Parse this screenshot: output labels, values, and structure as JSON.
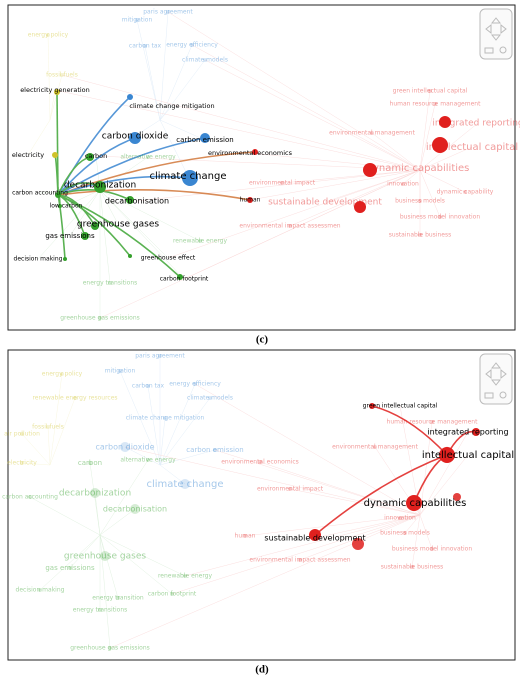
{
  "panels": [
    {
      "caption": "(c)",
      "nodes": [
        "paris agreement",
        "mitigation",
        "energy policy",
        "carbon tax",
        "energy efficiency",
        "climate models",
        "electricity generation",
        "fossil fuels",
        "climate change mitigation",
        "green intellectual capital",
        "human resource management",
        "integrated reporting",
        "carbon dioxide",
        "carbon emission",
        "environmental management",
        "intellectual capital",
        "electricity",
        "carbon",
        "alternative energy",
        "environmental economics",
        "dynamic capabilities",
        "climate change",
        "decarbonization",
        "environmental impact",
        "innovation",
        "sustainable development",
        "carbon accounting",
        "decarbonisation",
        "low carbon",
        "human",
        "dynamic capability",
        "business models",
        "greenhouse gases",
        "gas emissions",
        "environmental impact assessmen",
        "business model innovation",
        "sustainable business",
        "renewable energy",
        "decision making",
        "greenhouse effect",
        "energy transitions",
        "carbon footprint",
        "greenhouse gas emissions"
      ]
    },
    {
      "caption": "(d)",
      "nodes": [
        "paris agreement",
        "mitigation",
        "energy policy",
        "energy efficiency",
        "carbon tax",
        "renewable energy resources",
        "climate models",
        "green intellectual capital",
        "climate change mitigation",
        "human resource management",
        "fossil fuels",
        "air pollution",
        "integrated reporting",
        "carbon dioxide",
        "carbon emission",
        "environmental management",
        "intellectual capital",
        "electricity",
        "carbon",
        "alternative energy",
        "environmental economics",
        "climate change",
        "environmental impact",
        "decarbonization",
        "carbon accounting",
        "dynamic capabilities",
        "decarbonisation",
        "innovation",
        "business models",
        "human",
        "sustainable development",
        "greenhouse gases",
        "business model innovation",
        "environmental impact assessmen",
        "gas emissions",
        "sustainable business",
        "renewable energy",
        "decision making",
        "energy transition",
        "carbon footprint",
        "energy transitions",
        "greenhouse gas emissions"
      ]
    }
  ]
}
